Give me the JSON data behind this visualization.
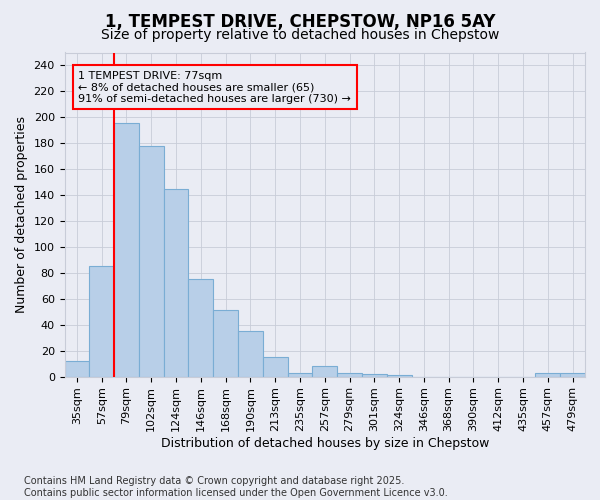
{
  "title_line1": "1, TEMPEST DRIVE, CHEPSTOW, NP16 5AY",
  "title_line2": "Size of property relative to detached houses in Chepstow",
  "xlabel": "Distribution of detached houses by size in Chepstow",
  "ylabel": "Number of detached properties",
  "footnote": "Contains HM Land Registry data © Crown copyright and database right 2025.\nContains public sector information licensed under the Open Government Licence v3.0.",
  "categories": [
    "35sqm",
    "57sqm",
    "79sqm",
    "102sqm",
    "124sqm",
    "146sqm",
    "168sqm",
    "190sqm",
    "213sqm",
    "235sqm",
    "257sqm",
    "279sqm",
    "301sqm",
    "324sqm",
    "346sqm",
    "368sqm",
    "390sqm",
    "412sqm",
    "435sqm",
    "457sqm",
    "479sqm"
  ],
  "values": [
    12,
    85,
    196,
    178,
    145,
    75,
    51,
    35,
    15,
    3,
    8,
    3,
    2,
    1,
    0,
    0,
    0,
    0,
    0,
    3,
    3
  ],
  "bar_color": "#b8cfe8",
  "bar_edge_color": "#7aadd4",
  "grid_color": "#c8ccd8",
  "background_color": "#eaecf4",
  "annotation_text": "1 TEMPEST DRIVE: 77sqm\n← 8% of detached houses are smaller (65)\n91% of semi-detached houses are larger (730) →",
  "vline_color": "red",
  "vline_x": 1.5,
  "ylim": [
    0,
    250
  ],
  "yticks": [
    0,
    20,
    40,
    60,
    80,
    100,
    120,
    140,
    160,
    180,
    200,
    220,
    240
  ],
  "title_fontsize": 12,
  "subtitle_fontsize": 10,
  "axis_label_fontsize": 9,
  "tick_fontsize": 8,
  "footnote_fontsize": 7,
  "annotation_fontsize": 8
}
